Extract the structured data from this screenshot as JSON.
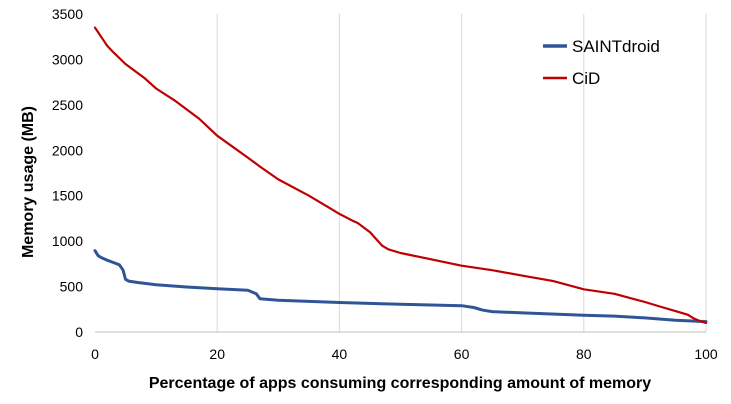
{
  "chart_data": {
    "type": "line",
    "title": "",
    "xlabel": "Percentage of apps consuming corresponding amount of memory",
    "ylabel": "Memory usage (MB)",
    "xlim": [
      0,
      100
    ],
    "ylim": [
      0,
      3500
    ],
    "x_ticks": [
      "0",
      "20",
      "40",
      "60",
      "80",
      "100"
    ],
    "y_ticks": [
      "0",
      "500",
      "1000",
      "1500",
      "2000",
      "2500",
      "3000",
      "3500"
    ],
    "grid": "vertical",
    "legend_position": "top-right",
    "series": [
      {
        "name": "SAINTdroid",
        "color": "#2f5597",
        "x": [
          0,
          0.5,
          1,
          2,
          3,
          4,
          4.6,
          5,
          5.5,
          7,
          10,
          15,
          20,
          25,
          26.4,
          27,
          30,
          40,
          50,
          60,
          62,
          63.5,
          65,
          70,
          80,
          85,
          90,
          95,
          100
        ],
        "y": [
          895,
          840,
          820,
          790,
          765,
          740,
          680,
          580,
          560,
          545,
          520,
          495,
          475,
          460,
          420,
          365,
          350,
          325,
          305,
          290,
          270,
          240,
          225,
          210,
          185,
          175,
          155,
          130,
          115
        ]
      },
      {
        "name": "CiD",
        "color": "#c00000",
        "x": [
          0,
          1,
          2,
          3,
          5,
          8,
          10,
          13,
          15,
          17,
          20,
          25,
          27,
          30,
          35,
          38,
          40,
          42,
          43,
          45,
          47,
          48,
          50,
          55,
          60,
          65,
          70,
          75,
          80,
          85,
          90,
          93,
          95,
          97,
          98,
          99,
          100
        ],
        "y": [
          3350,
          3250,
          3150,
          3080,
          2950,
          2800,
          2680,
          2550,
          2450,
          2350,
          2160,
          1920,
          1820,
          1680,
          1500,
          1380,
          1300,
          1230,
          1200,
          1100,
          950,
          910,
          870,
          800,
          730,
          680,
          620,
          560,
          470,
          420,
          330,
          270,
          230,
          190,
          150,
          120,
          100
        ]
      }
    ]
  }
}
